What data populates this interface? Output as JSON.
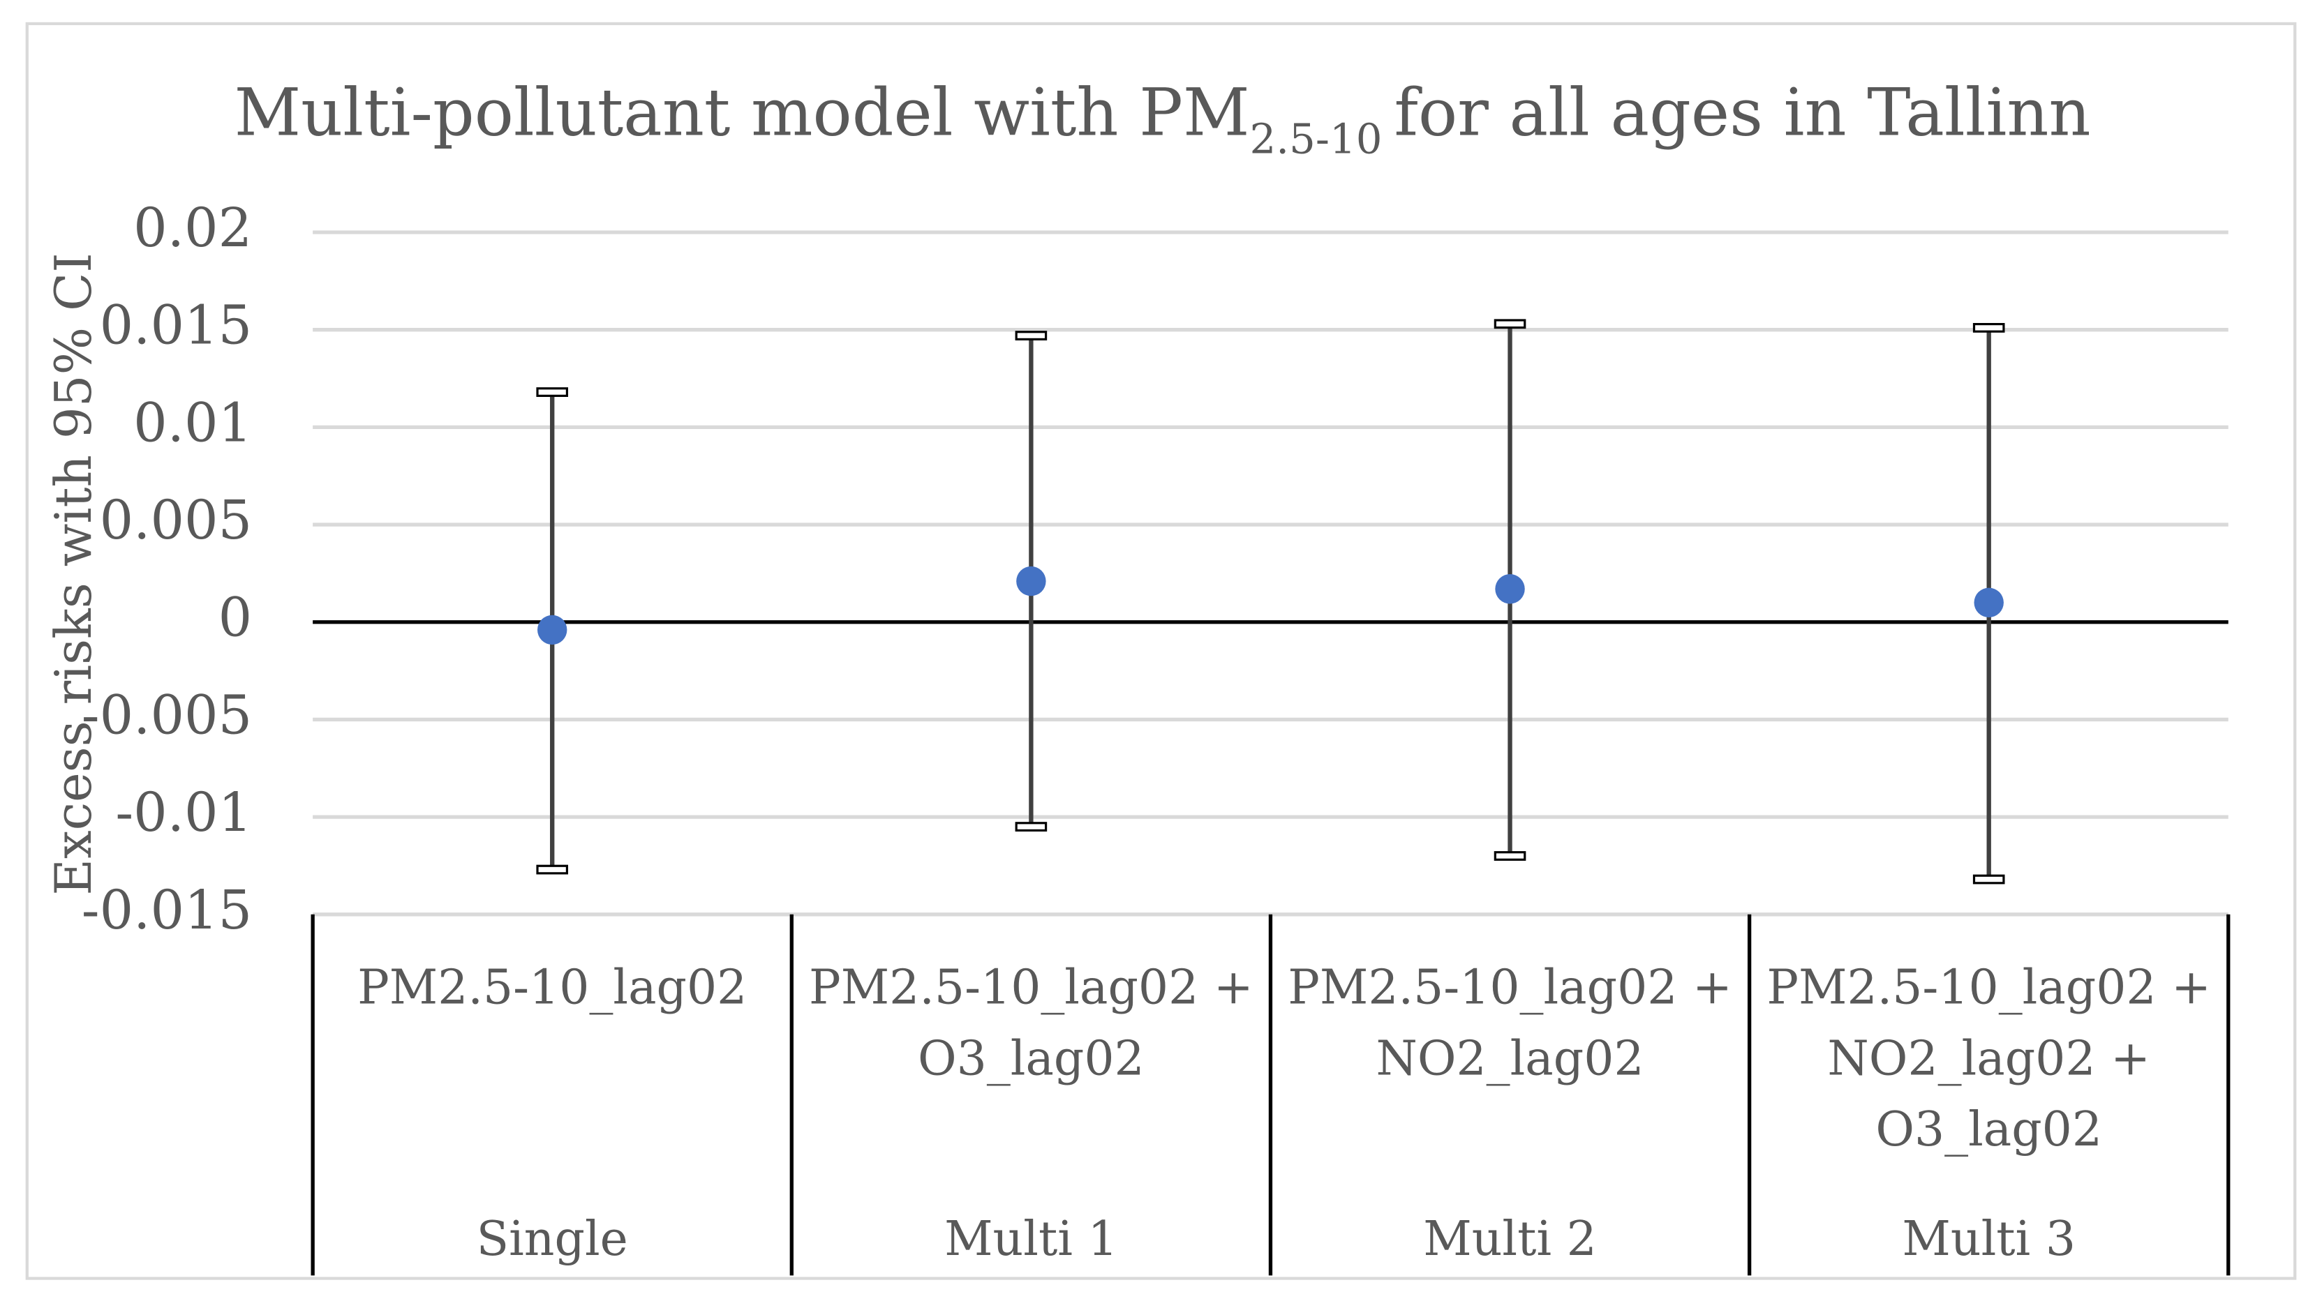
{
  "chart_data": {
    "type": "errorbar",
    "title": [
      "Multi-pollutant model with PM",
      "2.5-10",
      "for all ages in Tallinn"
    ],
    "y_label": "Excess risks with 95% CI",
    "categories": [
      [
        "PM2.5-10_lag02"
      ],
      [
        "PM2.5-10_lag02 +",
        "O3_lag02"
      ],
      [
        "PM2.5-10_lag02 +",
        "NO2_lag02"
      ],
      [
        "PM2.5-10_lag02 +",
        "NO2_lag02 +",
        "O3_lag02"
      ]
    ],
    "groups": [
      "Single",
      "Multi 1",
      "Multi 2",
      "Multi 3"
    ],
    "values": [
      -0.0004,
      0.0021,
      0.0017,
      0.001
    ],
    "ci_low": [
      -0.0127,
      -0.0105,
      -0.012,
      -0.0132
    ],
    "ci_high": [
      0.0118,
      0.0147,
      0.0153,
      0.0151
    ],
    "color": "#4472c4",
    "ylim": [
      -0.015,
      0.02
    ],
    "yticks": [
      -0.015,
      -0.01,
      -0.005,
      0,
      0.005,
      0.01,
      0.015,
      0.02
    ],
    "grid": true
  }
}
